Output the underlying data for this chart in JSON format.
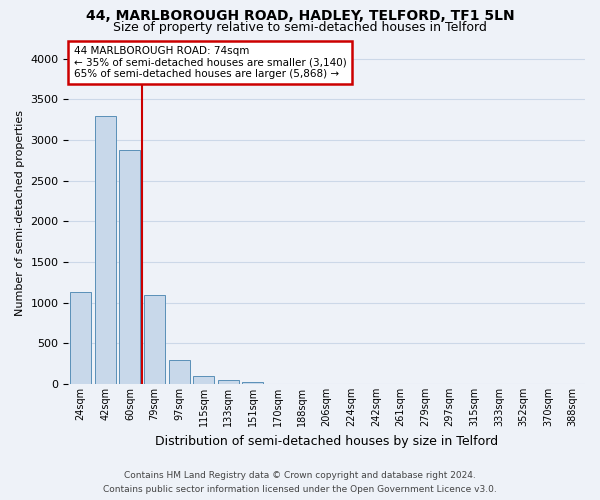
{
  "title1": "44, MARLBOROUGH ROAD, HADLEY, TELFORD, TF1 5LN",
  "title2": "Size of property relative to semi-detached houses in Telford",
  "xlabel": "Distribution of semi-detached houses by size in Telford",
  "ylabel": "Number of semi-detached properties",
  "footer1": "Contains HM Land Registry data © Crown copyright and database right 2024.",
  "footer2": "Contains public sector information licensed under the Open Government Licence v3.0.",
  "bins": [
    "24sqm",
    "42sqm",
    "60sqm",
    "79sqm",
    "97sqm",
    "115sqm",
    "133sqm",
    "151sqm",
    "170sqm",
    "188sqm",
    "206sqm",
    "224sqm",
    "242sqm",
    "261sqm",
    "279sqm",
    "297sqm",
    "315sqm",
    "333sqm",
    "352sqm",
    "370sqm",
    "388sqm"
  ],
  "values": [
    1130,
    3300,
    2880,
    1100,
    300,
    100,
    50,
    20,
    0,
    0,
    0,
    0,
    0,
    0,
    0,
    0,
    0,
    0,
    0,
    0,
    0
  ],
  "bar_color": "#c8d8ea",
  "bar_edge_color": "#5a90b8",
  "red_line_x": 2.5,
  "annotation_title": "44 MARLBOROUGH ROAD: 74sqm",
  "annotation_line1": "← 35% of semi-detached houses are smaller (3,140)",
  "annotation_line2": "65% of semi-detached houses are larger (5,868) →",
  "annotation_box_facecolor": "#ffffff",
  "annotation_box_edgecolor": "#cc0000",
  "ylim": [
    0,
    4200
  ],
  "yticks": [
    0,
    500,
    1000,
    1500,
    2000,
    2500,
    3000,
    3500,
    4000
  ],
  "grid_color": "#ccd8e8",
  "bg_color": "#eef2f8",
  "title1_fontsize": 10,
  "title2_fontsize": 9,
  "ylabel_fontsize": 8,
  "xlabel_fontsize": 9,
  "footer_fontsize": 6.5
}
